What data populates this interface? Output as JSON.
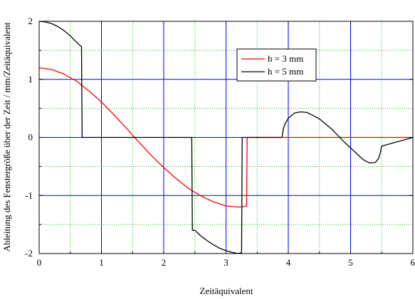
{
  "chart_data": {
    "type": "line",
    "xlabel": "Zeitäquivalent",
    "ylabel": "Ableitung des Fenstergröße über der Zeit / mm/Zeitäquivalent",
    "xlim": [
      0,
      6
    ],
    "ylim": [
      -2,
      2
    ],
    "xticks": [
      0,
      1,
      2,
      3,
      4,
      5,
      6
    ],
    "yticks": [
      -2,
      -1,
      0,
      1,
      2
    ],
    "x_tick_labels": [
      "0",
      "1",
      "2",
      "3",
      "4",
      "5",
      "6"
    ],
    "y_tick_labels": [
      "-2",
      "-1",
      "0",
      "1",
      "2"
    ],
    "grid": {
      "major": true,
      "minor": true,
      "major_color": "#0000ff",
      "minor_color": "#00cc00"
    },
    "legend_position": "top-right",
    "series": [
      {
        "name": "h = 3 mm",
        "color": "#ff0000",
        "x": [
          0,
          0.2,
          0.4,
          0.6,
          0.8,
          1.0,
          1.2,
          1.4,
          1.6,
          1.8,
          2.0,
          2.2,
          2.4,
          2.6,
          2.8,
          3.0,
          3.2,
          3.3,
          3.33,
          3.34,
          6.0
        ],
        "y": [
          1.2,
          1.17,
          1.09,
          0.97,
          0.8,
          0.61,
          0.39,
          0.16,
          -0.08,
          -0.31,
          -0.52,
          -0.71,
          -0.88,
          -1.01,
          -1.11,
          -1.18,
          -1.2,
          -1.19,
          -1.18,
          0,
          0
        ]
      },
      {
        "name": "h = 5 mm",
        "color": "#000000",
        "x": [
          0,
          0.1,
          0.2,
          0.3,
          0.4,
          0.5,
          0.6,
          0.66,
          0.68,
          0.69,
          2.45,
          2.46,
          2.5,
          2.6,
          2.7,
          2.8,
          2.9,
          3.0,
          3.1,
          3.2,
          3.23,
          3.25,
          3.26,
          3.9,
          3.92,
          3.95,
          4.0,
          4.1,
          4.2,
          4.3,
          4.5,
          4.7,
          4.9,
          5.1,
          5.2,
          5.3,
          5.4,
          5.45,
          5.48,
          5.5,
          6.0
        ],
        "y": [
          2.0,
          1.99,
          1.96,
          1.91,
          1.84,
          1.75,
          1.64,
          1.58,
          1.56,
          0,
          0,
          -1.6,
          -1.6,
          -1.7,
          -1.78,
          -1.85,
          -1.91,
          -1.95,
          -1.98,
          -2.0,
          -1.99,
          -1.99,
          0,
          0,
          0.15,
          0.24,
          0.33,
          0.42,
          0.44,
          0.43,
          0.32,
          0.14,
          -0.08,
          -0.28,
          -0.38,
          -0.44,
          -0.43,
          -0.36,
          -0.25,
          -0.15,
          0
        ]
      }
    ]
  }
}
